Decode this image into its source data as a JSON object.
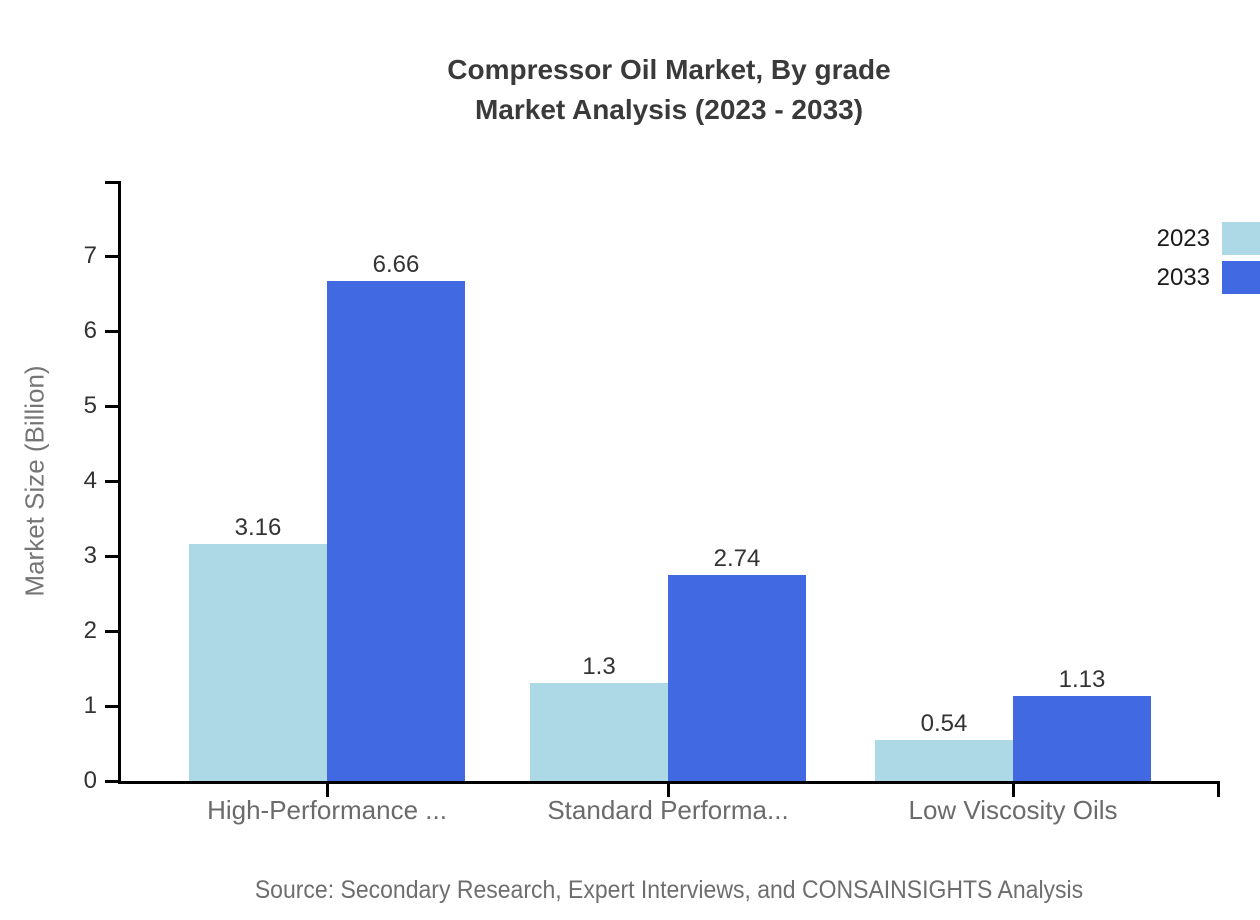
{
  "title": {
    "line1": "Compressor Oil Market, By grade",
    "line2": "Market Analysis (2023 - 2033)"
  },
  "source": "Source: Secondary Research, Expert Interviews, and CONSAINSIGHTS Analysis",
  "chart_data": {
    "type": "bar",
    "title": "Compressor Oil Market, By grade",
    "subtitle": "Market Analysis (2023 - 2033)",
    "categories": [
      "High-Performance ...",
      "Standard Performa...",
      "Low Viscosity Oils"
    ],
    "series": [
      {
        "name": "2023",
        "color": "#ADD8E6",
        "values": [
          3.16,
          1.3,
          0.54
        ]
      },
      {
        "name": "2033",
        "color": "#4169E1",
        "values": [
          6.66,
          2.74,
          1.13
        ]
      }
    ],
    "xlabel": "",
    "ylabel": "Market Size (Billion)",
    "yticks": [
      0,
      1,
      2,
      3,
      4,
      5,
      6,
      7
    ],
    "ylim": [
      0,
      8
    ],
    "grid": false,
    "legend_position": "top-right",
    "value_labels_shown": true
  },
  "colors": {
    "axis": "#000000",
    "title_text": "#3a3a3a",
    "tick_label": "#333333",
    "value_label": "#333333",
    "category_label": "#6b6b6b",
    "muted_text": "#6e6e6e"
  }
}
